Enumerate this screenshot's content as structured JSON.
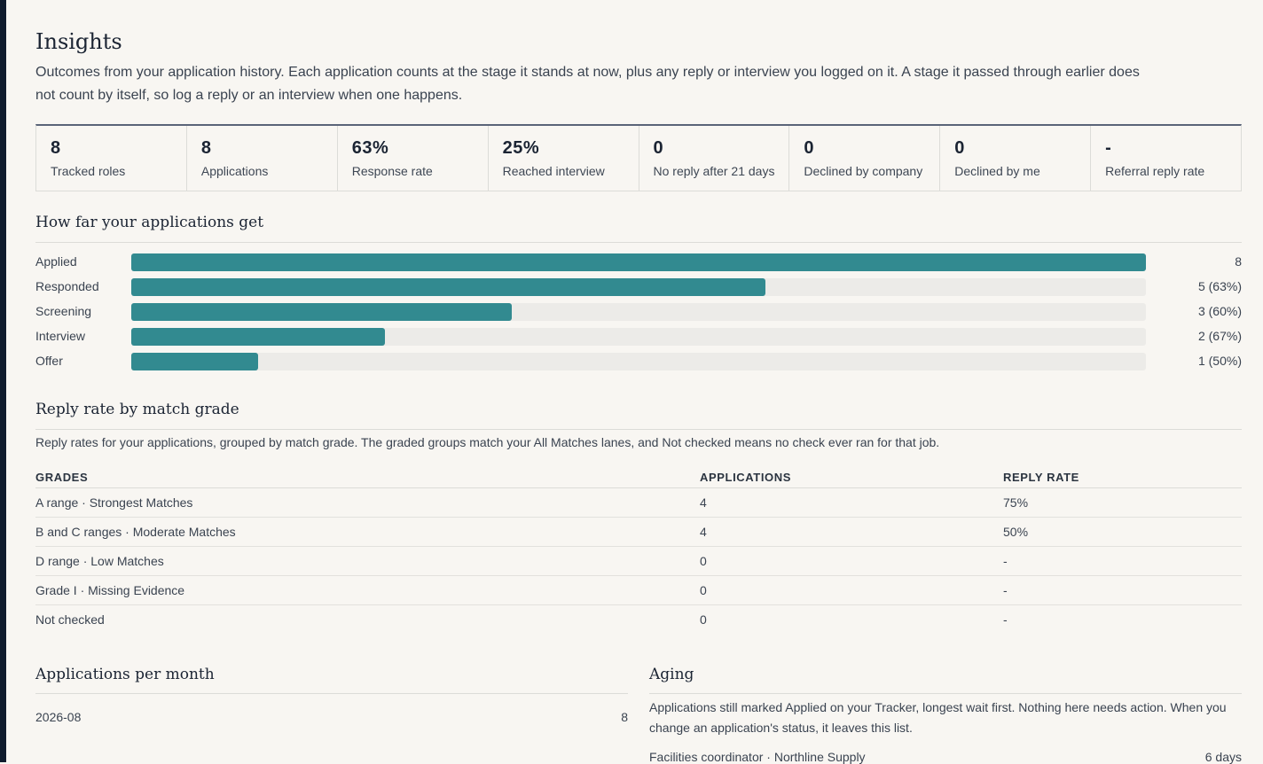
{
  "page": {
    "title": "Insights",
    "intro": "Outcomes from your application history. Each application counts at the stage it stands at now, plus any reply or interview you logged on it. A stage it passed through earlier does not count by itself, so log a reply or an interview when one happens."
  },
  "stats": [
    {
      "value": "8",
      "label": "Tracked roles"
    },
    {
      "value": "8",
      "label": "Applications"
    },
    {
      "value": "63%",
      "label": "Response rate"
    },
    {
      "value": "25%",
      "label": "Reached interview"
    },
    {
      "value": "0",
      "label": "No reply after 21 days"
    },
    {
      "value": "0",
      "label": "Declined by company"
    },
    {
      "value": "0",
      "label": "Declined by me"
    },
    {
      "value": "-",
      "label": "Referral reply rate"
    }
  ],
  "funnel": {
    "title": "How far your applications get",
    "rows": [
      {
        "label": "Applied",
        "count": 8,
        "value": "8"
      },
      {
        "label": "Responded",
        "count": 5,
        "value": "5 (63%)"
      },
      {
        "label": "Screening",
        "count": 3,
        "value": "3 (60%)"
      },
      {
        "label": "Interview",
        "count": 2,
        "value": "2 (67%)"
      },
      {
        "label": "Offer",
        "count": 1,
        "value": "1 (50%)"
      }
    ],
    "max": 8,
    "bar_color": "#328a90"
  },
  "grades": {
    "title": "Reply rate by match grade",
    "description": "Reply rates for your applications, grouped by match grade. The graded groups match your All Matches lanes, and Not checked means no check ever ran for that job.",
    "headers": {
      "grade": "GRADES",
      "applications": "APPLICATIONS",
      "reply_rate": "REPLY RATE"
    },
    "rows": [
      {
        "grade": "A range · Strongest Matches",
        "applications": "4",
        "reply_rate": "75%"
      },
      {
        "grade": "B and C ranges · Moderate Matches",
        "applications": "4",
        "reply_rate": "50%"
      },
      {
        "grade": "D range · Low Matches",
        "applications": "0",
        "reply_rate": "-"
      },
      {
        "grade": "Grade I · Missing Evidence",
        "applications": "0",
        "reply_rate": "-"
      },
      {
        "grade": "Not checked",
        "applications": "0",
        "reply_rate": "-"
      }
    ]
  },
  "monthly": {
    "title": "Applications per month",
    "rows": [
      {
        "month": "2026-08",
        "count": "8"
      }
    ]
  },
  "aging": {
    "title": "Aging",
    "description": "Applications still marked Applied on your Tracker, longest wait first. Nothing here needs action. When you change an application's status, it leaves this list.",
    "items": [
      {
        "role": "Facilities coordinator · Northline Supply",
        "wait": "6 days"
      }
    ]
  }
}
